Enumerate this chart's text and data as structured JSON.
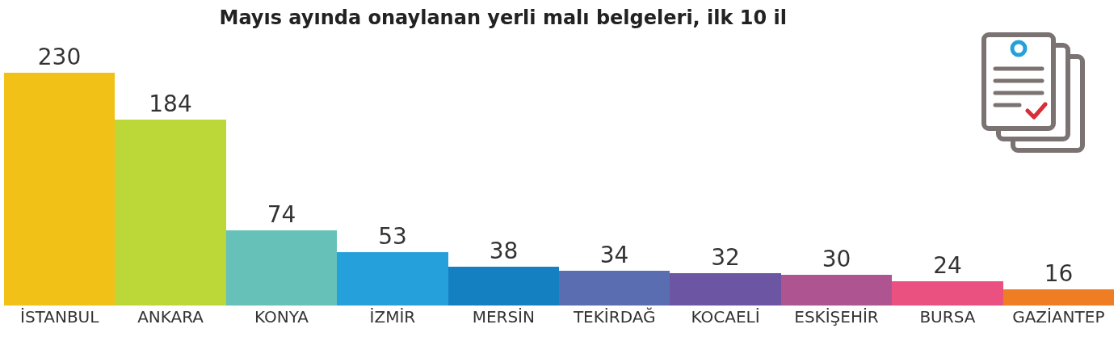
{
  "chart_data": {
    "type": "bar",
    "title": "Mayıs ayında onaylanan yerli malı belgeleri, ilk 10 il",
    "categories": [
      "İSTANBUL",
      "ANKARA",
      "KONYA",
      "İZMİR",
      "MERSİN",
      "TEKİRDAĞ",
      "KOCAELİ",
      "ESKİŞEHİR",
      "BURSA",
      "GAZİANTEP"
    ],
    "values": [
      230,
      184,
      74,
      53,
      38,
      34,
      32,
      30,
      24,
      16
    ],
    "colors": [
      "#f2c118",
      "#bcd838",
      "#66c2b9",
      "#26a0da",
      "#147fc1",
      "#596db0",
      "#6c55a3",
      "#ae5490",
      "#ea5181",
      "#ef7d23"
    ],
    "data_labels": true,
    "grid": false,
    "legend": false
  }
}
